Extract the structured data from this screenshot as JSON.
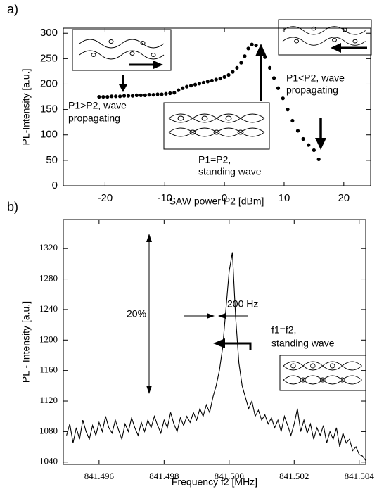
{
  "chart_data": [
    {
      "type": "scatter",
      "panel_label": "a)",
      "xlabel": "SAW power P2 [dBm]",
      "ylabel": "PL-Intensity [a.u.]",
      "xlim": [
        -27,
        24.5
      ],
      "ylim": [
        0,
        310
      ],
      "xticks": [
        -20,
        -10,
        0,
        10,
        20
      ],
      "yticks": [
        0,
        50,
        100,
        150,
        200,
        250,
        300
      ],
      "color": "#000000",
      "x": [
        -21,
        -20.3,
        -19.6,
        -18.9,
        -18.2,
        -17.5,
        -16.8,
        -16.1,
        -15.4,
        -14.7,
        -14,
        -13.3,
        -12.6,
        -11.9,
        -11.2,
        -10.5,
        -9.8,
        -9.1,
        -8.4,
        -7.7,
        -7,
        -6.3,
        -5.6,
        -4.9,
        -4.2,
        -3.5,
        -2.8,
        -2.1,
        -1.4,
        -0.7,
        0,
        0.7,
        1.4,
        2.1,
        2.8,
        3.4,
        4,
        4.6,
        5.3,
        6,
        6.8,
        7.6,
        8.3,
        9,
        9.8,
        10.6,
        11.4,
        12.3,
        13.2,
        14.1,
        15,
        15.8
      ],
      "values": [
        175,
        175,
        175,
        176,
        176,
        176,
        177,
        177,
        177,
        178,
        178,
        178,
        179,
        179,
        180,
        180,
        181,
        182,
        183,
        188,
        192,
        195,
        197,
        199,
        201,
        203,
        205,
        207,
        209,
        211,
        214,
        218,
        224,
        232,
        242,
        255,
        270,
        278,
        276,
        268,
        253,
        232,
        212,
        192,
        172,
        150,
        128,
        108,
        92,
        80,
        70,
        52
      ],
      "annotations": [
        [
          "P1>P2, wave",
          "propagating"
        ],
        [
          "P1=P2,",
          "standing wave"
        ],
        [
          "P1<P2, wave",
          "propagating"
        ]
      ]
    },
    {
      "type": "line",
      "panel_label": "b)",
      "xlabel": "Frequency f2 [MHz]",
      "ylabel": "PL - Intensity [a.u.]",
      "xlim": [
        841.4949,
        841.5042
      ],
      "ylim": [
        1037,
        1358
      ],
      "xticks": [
        841.496,
        841.498,
        {
          "value": 841.5,
          "label": "841.500"
        },
        841.502,
        841.504
      ],
      "yticks": [
        1040,
        1080,
        1120,
        1160,
        1200,
        1240,
        1280,
        1320
      ],
      "color": "#000000",
      "x": [
        841.495,
        841.4951,
        841.4952,
        841.4953,
        841.4954,
        841.4955,
        841.4956,
        841.4957,
        841.4958,
        841.4959,
        841.496,
        841.4961,
        841.4962,
        841.4963,
        841.4964,
        841.4965,
        841.4966,
        841.4967,
        841.4968,
        841.4969,
        841.497,
        841.4971,
        841.4972,
        841.4973,
        841.4974,
        841.4975,
        841.4976,
        841.4977,
        841.4978,
        841.4979,
        841.498,
        841.4981,
        841.4982,
        841.4983,
        841.4984,
        841.4985,
        841.4986,
        841.4987,
        841.4988,
        841.4989,
        841.499,
        841.4991,
        841.4992,
        841.4993,
        841.4994,
        841.4995,
        841.4996,
        841.4997,
        841.4998,
        841.4999,
        841.5,
        841.5001,
        841.5002,
        841.5003,
        841.5004,
        841.5005,
        841.5006,
        841.5007,
        841.5008,
        841.5009,
        841.501,
        841.5011,
        841.5012,
        841.5013,
        841.5014,
        841.5015,
        841.5016,
        841.5017,
        841.5018,
        841.5019,
        841.502,
        841.5021,
        841.5022,
        841.5023,
        841.5024,
        841.5025,
        841.5026,
        841.5027,
        841.5028,
        841.5029,
        841.503,
        841.5031,
        841.5032,
        841.5033,
        841.5034,
        841.5035,
        841.5036,
        841.5037,
        841.5038,
        841.5039,
        841.504,
        841.5041,
        841.5042
      ],
      "values": [
        1075,
        1090,
        1065,
        1085,
        1070,
        1095,
        1080,
        1070,
        1088,
        1075,
        1092,
        1080,
        1100,
        1085,
        1078,
        1095,
        1082,
        1070,
        1090,
        1080,
        1098,
        1085,
        1075,
        1092,
        1080,
        1095,
        1085,
        1100,
        1088,
        1078,
        1095,
        1085,
        1105,
        1090,
        1080,
        1098,
        1088,
        1100,
        1092,
        1105,
        1095,
        1110,
        1100,
        1115,
        1105,
        1125,
        1140,
        1160,
        1190,
        1240,
        1290,
        1315,
        1230,
        1170,
        1140,
        1125,
        1110,
        1120,
        1100,
        1108,
        1095,
        1102,
        1090,
        1098,
        1085,
        1095,
        1080,
        1100,
        1088,
        1075,
        1090,
        1110,
        1080,
        1095,
        1078,
        1090,
        1070,
        1085,
        1075,
        1088,
        1065,
        1080,
        1070,
        1085,
        1060,
        1078,
        1065,
        1070,
        1055,
        1060,
        1050,
        1048,
        1042
      ],
      "annotations": [
        [
          "20%"
        ],
        [
          "200 Hz"
        ],
        [
          "f1=f2,",
          "standing wave"
        ]
      ]
    }
  ]
}
